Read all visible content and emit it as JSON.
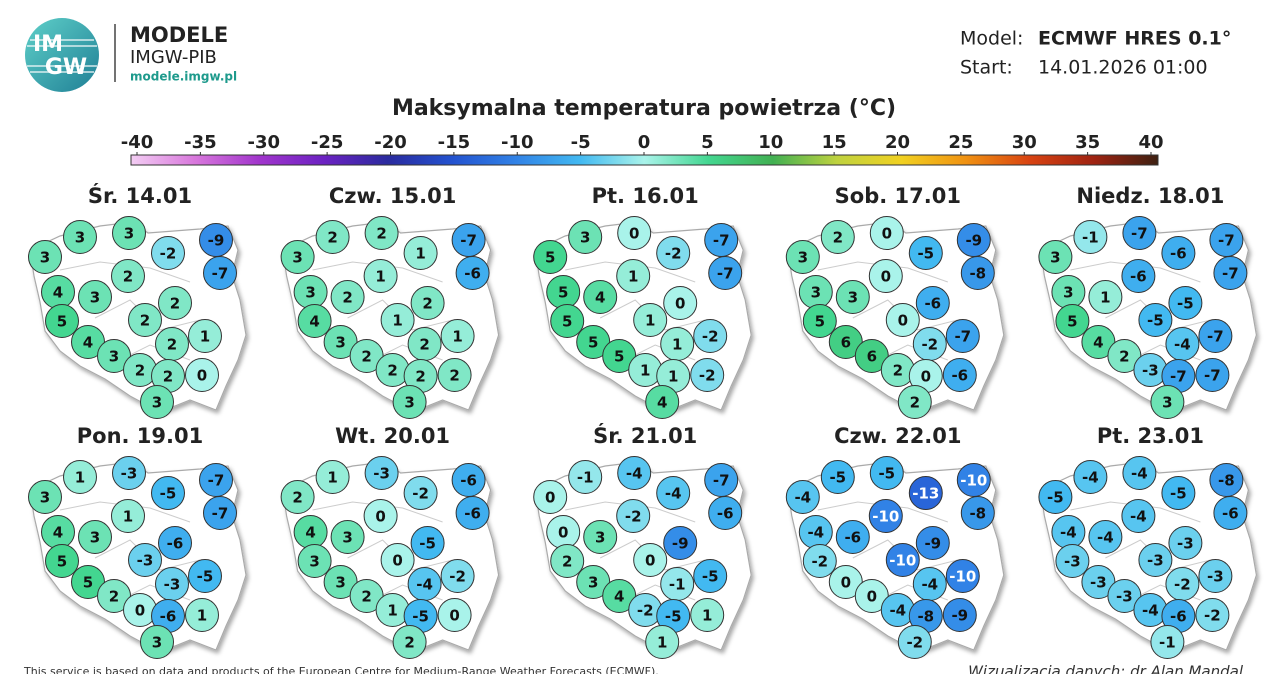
{
  "header": {
    "logo_top": "IM",
    "logo_bottom": "GW",
    "brand": "MODELE",
    "org": "IMGW-PIB",
    "url": "modele.imgw.pl",
    "model_label": "Model:",
    "model": "ECMWF HRES 0.1°",
    "start_label": "Start:",
    "start": "14.01.2026 01:00"
  },
  "chart_data": {
    "type": "station-map",
    "title": "Maksymalna temperatura powietrza (°C)",
    "colorbar": {
      "ticks": [
        -40,
        -35,
        -30,
        -25,
        -20,
        -15,
        -10,
        -5,
        0,
        5,
        10,
        15,
        20,
        25,
        30,
        35,
        40
      ],
      "colors": [
        "#f3cdf3",
        "#d877dc",
        "#a135cc",
        "#6c22c2",
        "#2a2a9e",
        "#2352cf",
        "#3182e6",
        "#42b9f1",
        "#a9f3ea",
        "#43d690",
        "#41b052",
        "#bfd23f",
        "#f1d121",
        "#f09212",
        "#d84312",
        "#9f2312",
        "#3e2112"
      ]
    },
    "maps": [
      {
        "title": "Śr. 14.01",
        "values": [
          3,
          3,
          3,
          -2,
          -9,
          -7,
          4,
          3,
          2,
          2,
          5,
          2,
          1,
          4,
          2,
          3,
          2,
          2,
          0,
          3
        ]
      },
      {
        "title": "Czw. 15.01",
        "values": [
          3,
          2,
          2,
          1,
          -7,
          -6,
          3,
          2,
          1,
          2,
          4,
          1,
          1,
          3,
          2,
          2,
          2,
          2,
          2,
          3
        ]
      },
      {
        "title": "Pt. 16.01",
        "values": [
          5,
          3,
          0,
          -2,
          -7,
          -7,
          5,
          4,
          1,
          0,
          5,
          1,
          -2,
          5,
          1,
          5,
          1,
          1,
          -2,
          4
        ]
      },
      {
        "title": "Sob. 17.01",
        "values": [
          3,
          2,
          0,
          -5,
          -9,
          -8,
          3,
          3,
          0,
          -6,
          5,
          0,
          -7,
          6,
          -2,
          6,
          2,
          0,
          -6,
          2
        ]
      },
      {
        "title": "Niedz. 18.01",
        "values": [
          3,
          -1,
          -7,
          -6,
          -7,
          -7,
          3,
          1,
          -6,
          -5,
          5,
          -5,
          -7,
          4,
          -4,
          2,
          -3,
          -7,
          -7,
          3
        ]
      },
      {
        "title": "Pon. 19.01",
        "values": [
          3,
          1,
          -3,
          -5,
          -7,
          -7,
          4,
          3,
          1,
          -6,
          5,
          -3,
          -5,
          5,
          -3,
          2,
          0,
          -6,
          1,
          3
        ]
      },
      {
        "title": "Wt. 20.01",
        "values": [
          2,
          1,
          -3,
          -2,
          -6,
          -6,
          4,
          3,
          0,
          -5,
          3,
          0,
          -2,
          3,
          -4,
          2,
          1,
          -5,
          0,
          2
        ]
      },
      {
        "title": "Śr. 21.01",
        "values": [
          0,
          -1,
          -4,
          -4,
          -7,
          -6,
          0,
          3,
          -2,
          -9,
          2,
          0,
          -5,
          3,
          -1,
          4,
          -2,
          -5,
          1,
          1
        ]
      },
      {
        "title": "Czw. 22.01",
        "values": [
          -4,
          -5,
          -5,
          -13,
          -10,
          -8,
          -4,
          -6,
          -10,
          -9,
          -2,
          -10,
          -10,
          0,
          -4,
          0,
          -4,
          -8,
          -9,
          -2
        ]
      },
      {
        "title": "Pt. 23.01",
        "values": [
          -5,
          -4,
          -4,
          -5,
          -8,
          -6,
          -4,
          -4,
          -4,
          -3,
          -3,
          -3,
          -3,
          -3,
          -2,
          -3,
          -4,
          -6,
          -2,
          -1
        ]
      }
    ]
  },
  "footer": {
    "credit_left": "This service is based on data and products of the European Centre for Medium-Range Weather Forecasts (ECMWF).",
    "credit_right": "Wizualizacja danych: dr Alan Mandal"
  }
}
